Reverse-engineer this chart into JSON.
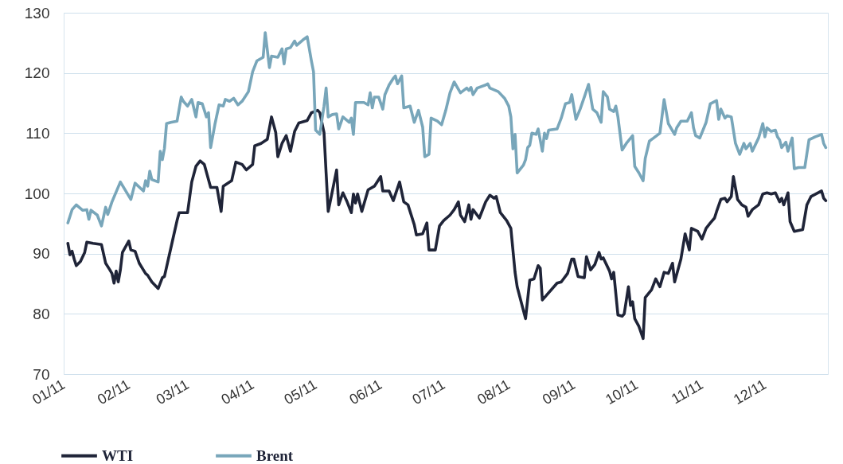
{
  "chart_data": {
    "type": "line",
    "xlim": [
      "2011-01-01",
      "2011-12-31"
    ],
    "xticks": [
      {
        "value": "2011-01-01",
        "label": "01/11"
      },
      {
        "value": "2011-02-01",
        "label": "02/11"
      },
      {
        "value": "2011-03-01",
        "label": "03/11"
      },
      {
        "value": "2011-04-01",
        "label": "04/11"
      },
      {
        "value": "2011-05-01",
        "label": "05/11"
      },
      {
        "value": "2011-06-01",
        "label": "06/11"
      },
      {
        "value": "2011-07-01",
        "label": "07/11"
      },
      {
        "value": "2011-08-01",
        "label": "08/11"
      },
      {
        "value": "2011-09-01",
        "label": "09/11"
      },
      {
        "value": "2011-10-01",
        "label": "10/11"
      },
      {
        "value": "2011-11-01",
        "label": "11/11"
      },
      {
        "value": "2011-12-01",
        "label": "12/11"
      }
    ],
    "ylim": [
      70,
      130
    ],
    "yticks": [
      70,
      80,
      90,
      100,
      110,
      120,
      130
    ],
    "grid": "y",
    "legend": "bottom",
    "line_style": "solid",
    "series": [
      {
        "name": "WTI",
        "color": "#1f2438",
        "x": [
          "2011-01-03",
          "2011-01-04",
          "2011-01-05",
          "2011-01-06",
          "2011-01-07",
          "2011-01-09",
          "2011-01-11",
          "2011-01-12",
          "2011-01-15",
          "2011-01-19",
          "2011-01-21",
          "2011-01-23",
          "2011-01-24",
          "2011-01-25",
          "2011-01-26",
          "2011-01-27",
          "2011-01-28",
          "2011-01-29",
          "2011-02-01",
          "2011-02-02",
          "2011-02-04",
          "2011-02-06",
          "2011-02-09",
          "2011-02-10",
          "2011-02-12",
          "2011-02-15",
          "2011-02-17",
          "2011-02-18",
          "2011-02-22",
          "2011-02-24",
          "2011-02-25",
          "2011-03-01",
          "2011-03-03",
          "2011-03-05",
          "2011-03-07",
          "2011-03-09",
          "2011-03-12",
          "2011-03-15",
          "2011-03-17",
          "2011-03-18",
          "2011-03-22",
          "2011-03-24",
          "2011-03-27",
          "2011-03-29",
          "2011-04-01",
          "2011-04-02",
          "2011-04-05",
          "2011-04-08",
          "2011-04-10",
          "2011-04-12",
          "2011-04-13",
          "2011-04-15",
          "2011-04-17",
          "2011-04-19",
          "2011-04-21",
          "2011-04-23",
          "2011-04-27",
          "2011-04-29",
          "2011-05-02",
          "2011-05-03",
          "2011-05-05",
          "2011-05-06",
          "2011-05-07",
          "2011-05-09",
          "2011-05-11",
          "2011-05-12",
          "2011-05-14",
          "2011-05-16",
          "2011-05-18",
          "2011-05-19",
          "2011-05-20",
          "2011-05-21",
          "2011-05-23",
          "2011-05-26",
          "2011-05-29",
          "2011-06-01",
          "2011-06-02",
          "2011-06-05",
          "2011-06-07",
          "2011-06-10",
          "2011-06-12",
          "2011-06-14",
          "2011-06-17",
          "2011-06-18",
          "2011-06-21",
          "2011-06-23",
          "2011-06-24",
          "2011-06-27",
          "2011-06-29",
          "2011-07-01",
          "2011-07-04",
          "2011-07-06",
          "2011-07-08",
          "2011-07-09",
          "2011-07-11",
          "2011-07-13",
          "2011-07-14",
          "2011-07-15",
          "2011-07-18",
          "2011-07-21",
          "2011-07-23",
          "2011-07-25",
          "2011-07-26",
          "2011-07-28",
          "2011-07-31",
          "2011-08-02",
          "2011-08-04",
          "2011-08-05",
          "2011-08-09",
          "2011-08-11",
          "2011-08-13",
          "2011-08-15",
          "2011-08-16",
          "2011-08-17",
          "2011-08-19",
          "2011-08-24",
          "2011-08-26",
          "2011-08-29",
          "2011-08-31",
          "2011-09-01",
          "2011-09-03",
          "2011-09-06",
          "2011-09-07",
          "2011-09-09",
          "2011-09-11",
          "2011-09-13",
          "2011-09-14",
          "2011-09-15",
          "2011-09-18",
          "2011-09-19",
          "2011-09-20",
          "2011-09-22",
          "2011-09-24",
          "2011-09-25",
          "2011-09-27",
          "2011-09-28",
          "2011-09-29",
          "2011-09-30",
          "2011-10-02",
          "2011-10-04",
          "2011-10-05",
          "2011-10-08",
          "2011-10-10",
          "2011-10-12",
          "2011-10-14",
          "2011-10-16",
          "2011-10-18",
          "2011-10-19",
          "2011-10-22",
          "2011-10-24",
          "2011-10-26",
          "2011-10-27",
          "2011-10-30",
          "2011-11-01",
          "2011-11-03",
          "2011-11-05",
          "2011-11-07",
          "2011-11-08",
          "2011-11-10",
          "2011-11-12",
          "2011-11-13",
          "2011-11-15",
          "2011-11-16",
          "2011-11-18",
          "2011-11-20",
          "2011-11-22",
          "2011-11-23",
          "2011-11-25",
          "2011-11-28",
          "2011-11-30",
          "2011-12-02",
          "2011-12-04",
          "2011-12-06",
          "2011-12-08",
          "2011-12-09",
          "2011-12-10",
          "2011-12-12",
          "2011-12-13",
          "2011-12-15",
          "2011-12-19",
          "2011-12-21",
          "2011-12-23",
          "2011-12-28",
          "2011-12-29",
          "2011-12-30"
        ],
        "values": [
          91.7,
          89.8,
          90.4,
          89.1,
          88.0,
          88.7,
          90.2,
          91.9,
          91.7,
          91.5,
          88.4,
          87.3,
          86.7,
          85.1,
          87.1,
          85.3,
          87.3,
          90.2,
          92.1,
          90.6,
          90.4,
          88.4,
          86.7,
          86.4,
          85.3,
          84.2,
          86.0,
          86.2,
          92.4,
          95.5,
          96.8,
          96.8,
          101.9,
          104.5,
          105.4,
          104.8,
          101.0,
          101.0,
          97.0,
          101.2,
          102.1,
          105.2,
          104.8,
          103.9,
          104.8,
          107.9,
          108.3,
          109.0,
          112.7,
          110.1,
          106.1,
          108.3,
          109.6,
          107.0,
          110.3,
          111.7,
          112.1,
          113.4,
          113.8,
          113.4,
          110.1,
          103.4,
          97.0,
          100.4,
          103.9,
          98.1,
          100.1,
          98.6,
          96.8,
          99.9,
          98.4,
          99.9,
          97.0,
          100.6,
          101.2,
          102.8,
          100.4,
          100.4,
          98.8,
          101.9,
          98.6,
          98.1,
          94.8,
          93.1,
          93.3,
          95.1,
          90.6,
          90.6,
          94.6,
          95.5,
          96.4,
          97.3,
          98.6,
          96.4,
          95.3,
          98.1,
          95.7,
          97.3,
          95.9,
          98.6,
          99.7,
          99.2,
          99.5,
          96.8,
          95.5,
          94.2,
          86.9,
          84.5,
          79.2,
          85.6,
          85.8,
          88.0,
          87.6,
          82.3,
          83.1,
          85.1,
          85.3,
          86.7,
          89.1,
          89.1,
          86.2,
          86.0,
          89.5,
          87.3,
          88.2,
          90.2,
          89.1,
          89.3,
          87.1,
          85.8,
          86.9,
          79.8,
          79.6,
          80.0,
          84.5,
          81.4,
          82.0,
          79.2,
          77.9,
          75.9,
          82.7,
          84.0,
          85.8,
          84.5,
          86.9,
          86.7,
          88.4,
          85.3,
          89.1,
          93.3,
          90.6,
          94.2,
          93.7,
          92.4,
          94.2,
          95.1,
          95.9,
          97.0,
          99.0,
          99.2,
          98.6,
          99.5,
          102.8,
          99.0,
          98.1,
          97.7,
          96.2,
          97.3,
          98.1,
          99.9,
          100.1,
          99.9,
          100.1,
          98.6,
          99.2,
          98.1,
          100.1,
          95.3,
          93.7,
          94.0,
          98.1,
          99.5,
          100.4,
          99.2,
          98.8
        ]
      },
      {
        "name": "Brent",
        "color": "#78a6ba",
        "x": [
          "2011-01-03",
          "2011-01-05",
          "2011-01-07",
          "2011-01-10",
          "2011-01-12",
          "2011-01-13",
          "2011-01-14",
          "2011-01-17",
          "2011-01-19",
          "2011-01-21",
          "2011-01-22",
          "2011-01-24",
          "2011-01-28",
          "2011-02-02",
          "2011-02-04",
          "2011-02-08",
          "2011-02-09",
          "2011-02-10",
          "2011-02-11",
          "2011-02-12",
          "2011-02-15",
          "2011-02-16",
          "2011-02-17",
          "2011-02-18",
          "2011-02-19",
          "2011-02-21",
          "2011-02-24",
          "2011-02-26",
          "2011-02-27",
          "2011-03-01",
          "2011-03-03",
          "2011-03-05",
          "2011-03-06",
          "2011-03-08",
          "2011-03-10",
          "2011-03-11",
          "2011-03-12",
          "2011-03-14",
          "2011-03-16",
          "2011-03-18",
          "2011-03-19",
          "2011-03-21",
          "2011-03-23",
          "2011-03-25",
          "2011-03-27",
          "2011-03-30",
          "2011-04-01",
          "2011-04-03",
          "2011-04-06",
          "2011-04-07",
          "2011-04-09",
          "2011-04-10",
          "2011-04-13",
          "2011-04-15",
          "2011-04-16",
          "2011-04-17",
          "2011-04-19",
          "2011-04-21",
          "2011-04-22",
          "2011-04-25",
          "2011-04-27",
          "2011-04-29",
          "2011-04-30",
          "2011-05-01",
          "2011-05-03",
          "2011-05-05",
          "2011-05-06",
          "2011-05-07",
          "2011-05-09",
          "2011-05-11",
          "2011-05-12",
          "2011-05-14",
          "2011-05-17",
          "2011-05-18",
          "2011-05-19",
          "2011-05-20",
          "2011-05-24",
          "2011-05-26",
          "2011-05-27",
          "2011-05-28",
          "2011-05-29",
          "2011-05-31",
          "2011-06-02",
          "2011-06-03",
          "2011-06-05",
          "2011-06-07",
          "2011-06-08",
          "2011-06-09",
          "2011-06-11",
          "2011-06-12",
          "2011-06-15",
          "2011-06-17",
          "2011-06-19",
          "2011-06-21",
          "2011-06-22",
          "2011-06-24",
          "2011-06-25",
          "2011-06-28",
          "2011-06-30",
          "2011-07-02",
          "2011-07-04",
          "2011-07-06",
          "2011-07-09",
          "2011-07-12",
          "2011-07-13",
          "2011-07-14",
          "2011-07-15",
          "2011-07-17",
          "2011-07-21",
          "2011-07-22",
          "2011-07-23",
          "2011-07-27",
          "2011-07-30",
          "2011-08-01",
          "2011-08-02",
          "2011-08-03",
          "2011-08-04",
          "2011-08-05",
          "2011-08-08",
          "2011-08-09",
          "2011-08-10",
          "2011-08-11",
          "2011-08-12",
          "2011-08-14",
          "2011-08-15",
          "2011-08-17",
          "2011-08-18",
          "2011-08-19",
          "2011-08-20",
          "2011-08-24",
          "2011-08-26",
          "2011-08-28",
          "2011-08-30",
          "2011-08-31",
          "2011-09-02",
          "2011-09-04",
          "2011-09-06",
          "2011-09-08",
          "2011-09-10",
          "2011-09-12",
          "2011-09-14",
          "2011-09-15",
          "2011-09-17",
          "2011-09-18",
          "2011-09-20",
          "2011-09-21",
          "2011-09-22",
          "2011-09-24",
          "2011-09-26",
          "2011-09-29",
          "2011-09-30",
          "2011-10-02",
          "2011-10-04",
          "2011-10-05",
          "2011-10-07",
          "2011-10-09",
          "2011-10-12",
          "2011-10-14",
          "2011-10-16",
          "2011-10-19",
          "2011-10-20",
          "2011-10-22",
          "2011-10-25",
          "2011-10-27",
          "2011-10-28",
          "2011-10-29",
          "2011-10-31",
          "2011-11-03",
          "2011-11-05",
          "2011-11-08",
          "2011-11-09",
          "2011-11-10",
          "2011-11-12",
          "2011-11-13",
          "2011-11-15",
          "2011-11-17",
          "2011-11-19",
          "2011-11-21",
          "2011-11-22",
          "2011-11-24",
          "2011-11-25",
          "2011-11-28",
          "2011-11-30",
          "2011-12-01",
          "2011-12-02",
          "2011-12-04",
          "2011-12-06",
          "2011-12-07",
          "2011-12-08",
          "2011-12-09",
          "2011-12-11",
          "2011-12-12",
          "2011-12-14",
          "2011-12-15",
          "2011-12-17",
          "2011-12-20",
          "2011-12-22",
          "2011-12-25",
          "2011-12-28",
          "2011-12-29",
          "2011-12-30"
        ],
        "values": [
          95.1,
          97.3,
          98.1,
          97.2,
          97.3,
          95.7,
          97.2,
          96.4,
          94.6,
          97.7,
          96.5,
          98.6,
          101.9,
          99.0,
          101.7,
          100.4,
          102.1,
          101.2,
          103.7,
          102.3,
          101.9,
          107.0,
          105.6,
          107.5,
          111.6,
          111.8,
          112.0,
          116.0,
          115.3,
          114.5,
          115.6,
          112.7,
          115.1,
          114.9,
          112.7,
          113.4,
          107.6,
          111.4,
          114.7,
          114.5,
          115.6,
          115.3,
          115.8,
          114.7,
          115.3,
          116.9,
          120.2,
          122.0,
          122.6,
          126.7,
          120.9,
          122.8,
          122.6,
          124.0,
          121.5,
          124.0,
          124.2,
          125.3,
          124.6,
          125.5,
          126.0,
          122.0,
          120.2,
          110.5,
          109.8,
          114.5,
          117.5,
          112.7,
          113.1,
          113.2,
          110.7,
          112.7,
          111.8,
          112.5,
          109.8,
          115.1,
          115.1,
          114.7,
          116.7,
          114.2,
          116.0,
          116.0,
          114.0,
          116.4,
          118.0,
          119.1,
          119.5,
          118.2,
          119.5,
          114.2,
          114.5,
          111.8,
          113.8,
          111.0,
          106.1,
          106.5,
          112.5,
          112.0,
          111.4,
          113.8,
          116.7,
          118.5,
          116.7,
          117.5,
          117.1,
          117.6,
          116.4,
          117.5,
          118.0,
          118.2,
          117.5,
          116.9,
          115.8,
          114.5,
          112.7,
          107.4,
          109.8,
          103.4,
          104.7,
          105.6,
          107.6,
          108.0,
          110.0,
          109.8,
          110.7,
          107.0,
          110.0,
          109.1,
          110.5,
          110.7,
          112.5,
          114.9,
          115.1,
          116.4,
          112.3,
          114.0,
          116.0,
          118.1,
          114.0,
          113.4,
          111.8,
          116.9,
          116.0,
          114.0,
          113.6,
          114.5,
          112.7,
          107.2,
          108.3,
          109.6,
          104.5,
          103.4,
          102.1,
          105.8,
          108.7,
          109.2,
          110.0,
          115.6,
          111.6,
          109.8,
          110.9,
          112.0,
          112.0,
          113.4,
          110.9,
          109.6,
          109.2,
          111.8,
          114.9,
          115.4,
          112.3,
          114.0,
          112.5,
          112.9,
          112.7,
          108.3,
          106.5,
          108.3,
          107.4,
          108.3,
          107.0,
          109.2,
          111.6,
          109.4,
          110.9,
          110.3,
          110.5,
          109.4,
          108.9,
          107.6,
          108.5,
          107.0,
          109.2,
          104.1,
          104.3,
          104.3,
          108.9,
          109.4,
          109.8,
          108.3,
          107.6
        ]
      }
    ]
  }
}
